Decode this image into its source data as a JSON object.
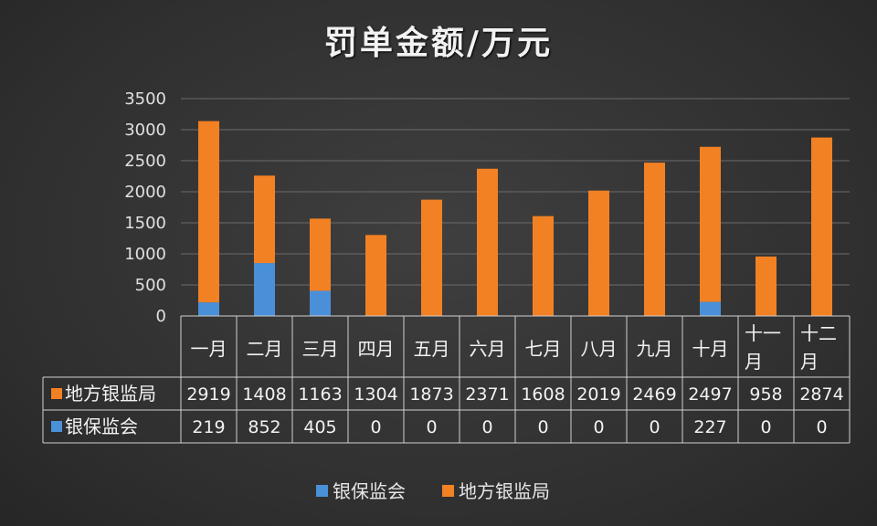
{
  "title": "罚单金额/万元",
  "colors": {
    "bank_insurance": "#4a90d9",
    "local_bank": "#f28124",
    "grid": "#6b6b6b",
    "table_border": "#d0d0d0"
  },
  "chart_data": {
    "type": "bar",
    "stacked": true,
    "title": "罚单金额/万元",
    "categories": [
      "一月",
      "二月",
      "三月",
      "四月",
      "五月",
      "六月",
      "七月",
      "八月",
      "九月",
      "十月",
      "十一月",
      "十二月"
    ],
    "series": [
      {
        "name": "银保监会",
        "values": [
          219,
          852,
          405,
          0,
          0,
          0,
          0,
          0,
          0,
          227,
          0,
          0
        ]
      },
      {
        "name": "地方银监局",
        "values": [
          2919,
          1408,
          1163,
          1304,
          1873,
          2371,
          1608,
          2019,
          2469,
          2497,
          958,
          2874
        ]
      }
    ],
    "yticks": [
      "0",
      "500",
      "1000",
      "1500",
      "2000",
      "2500",
      "3000",
      "3500"
    ],
    "ylim": [
      0,
      3500
    ],
    "grid": true,
    "legend_position": "bottom",
    "data_table": true
  }
}
